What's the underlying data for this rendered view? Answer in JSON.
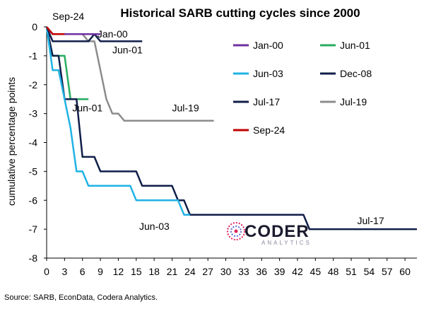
{
  "chart_data": {
    "type": "line",
    "title": "Historical SARB cutting cycles since 2000",
    "ylabel": "cumulative percentage points",
    "xlabel": "",
    "xlim": [
      0,
      62
    ],
    "ylim": [
      -8,
      0
    ],
    "x_ticks": [
      0,
      3,
      6,
      9,
      12,
      15,
      18,
      21,
      24,
      27,
      30,
      33,
      36,
      39,
      42,
      45,
      48,
      51,
      54,
      57,
      60
    ],
    "y_ticks": [
      0,
      -1,
      -2,
      -3,
      -4,
      -5,
      -6,
      -7,
      -8
    ],
    "legend_position": "right",
    "series": [
      {
        "name": "Jan-00",
        "color": "#7030a0",
        "x": [
          0,
          1,
          2,
          3,
          4,
          5,
          6,
          7,
          8,
          9
        ],
        "y": [
          0,
          -0.25,
          -0.25,
          -0.25,
          -0.25,
          -0.25,
          -0.25,
          -0.25,
          -0.25,
          -0.25
        ]
      },
      {
        "name": "Jun-01",
        "color": "#27ae60",
        "x": [
          0,
          1,
          2,
          3,
          4,
          5,
          6,
          7
        ],
        "y": [
          0,
          -1,
          -1,
          -1,
          -2.5,
          -2.5,
          -2.5,
          -2.5
        ]
      },
      {
        "name": "Jun-03",
        "color": "#1fb3e5",
        "x": [
          0,
          1,
          2,
          3,
          4,
          5,
          6,
          7,
          8,
          9,
          10,
          11,
          12,
          13,
          14,
          15,
          16,
          17,
          18,
          19,
          20,
          21,
          22,
          23,
          24
        ],
        "y": [
          0,
          -1.5,
          -1.5,
          -2.5,
          -3.5,
          -5,
          -5,
          -5.5,
          -5.5,
          -5.5,
          -5.5,
          -5.5,
          -5.5,
          -5.5,
          -5.5,
          -6,
          -6,
          -6,
          -6,
          -6,
          -6,
          -6,
          -6,
          -6.5,
          -6.5
        ]
      },
      {
        "name": "Dec-08",
        "color": "#0f1e4a",
        "x": [
          0,
          1,
          2,
          3,
          4,
          5,
          6,
          7,
          8,
          9,
          10,
          11,
          12,
          13,
          14,
          15,
          16,
          17,
          18,
          19,
          20,
          21,
          22,
          23,
          24,
          25,
          26,
          27,
          28,
          29,
          30,
          31,
          32,
          33,
          34,
          35,
          36,
          37,
          38,
          39,
          40,
          41,
          42,
          43,
          44,
          45,
          46,
          47,
          48,
          49,
          50,
          51,
          52,
          53,
          54,
          55,
          56,
          57,
          58,
          59,
          60,
          61,
          62
        ],
        "y": [
          0,
          -1,
          -1,
          -2.5,
          -2.5,
          -2.5,
          -4.5,
          -4.5,
          -4.5,
          -5,
          -5,
          -5,
          -5,
          -5,
          -5,
          -5,
          -5.5,
          -5.5,
          -5.5,
          -5.5,
          -5.5,
          -5.5,
          -6,
          -6,
          -6.5,
          -6.5,
          -6.5,
          -6.5,
          -6.5,
          -6.5,
          -6.5,
          -6.5,
          -6.5,
          -6.5,
          -6.5,
          -6.5,
          -6.5,
          -6.5,
          -6.5,
          -6.5,
          -6.5,
          -6.5,
          -6.5,
          -6.5,
          -7,
          -7,
          -7,
          -7,
          -7,
          -7,
          -7,
          -7,
          -7,
          -7,
          -7,
          -7,
          -7,
          -7,
          -7,
          -7,
          -7,
          -7,
          -7
        ]
      },
      {
        "name": "Jul-17",
        "color": "#0f1e4a",
        "x": [
          0,
          1,
          2,
          3,
          4,
          5,
          6,
          7,
          8,
          9,
          10,
          11,
          12,
          13,
          14,
          15,
          16
        ],
        "y": [
          0,
          -0.5,
          -0.5,
          -0.5,
          -0.5,
          -0.5,
          -0.5,
          -0.5,
          -0.25,
          -0.5,
          -0.5,
          -0.5,
          -0.5,
          -0.5,
          -0.5,
          -0.5,
          -0.5
        ]
      },
      {
        "name": "Jul-19",
        "color": "#8c8c8c",
        "x": [
          0,
          1,
          2,
          3,
          4,
          5,
          6,
          7,
          8,
          9,
          10,
          11,
          12,
          13,
          14,
          15,
          16,
          17,
          18,
          19,
          20,
          21,
          22,
          23,
          24,
          25,
          26,
          27,
          28
        ],
        "y": [
          0,
          -0.25,
          -0.25,
          -0.25,
          -0.25,
          -0.25,
          -0.25,
          -0.5,
          -0.5,
          -1.5,
          -2.5,
          -3,
          -3,
          -3.25,
          -3.25,
          -3.25,
          -3.25,
          -3.25,
          -3.25,
          -3.25,
          -3.25,
          -3.25,
          -3.25,
          -3.25,
          -3.25,
          -3.25,
          -3.25,
          -3.25,
          -3.25
        ]
      },
      {
        "name": "Sep-24",
        "color": "#c00000",
        "x": [
          0,
          1,
          2,
          3
        ],
        "y": [
          0,
          -0.25,
          -0.25,
          -0.25
        ]
      }
    ],
    "annotations": [
      {
        "text": "Sep-24",
        "x": 0,
        "y": 0
      },
      {
        "text": "Jan-00",
        "x": 8.5,
        "y": -0.25
      },
      {
        "text": "Jun-01",
        "x": 11,
        "y": -0.8
      },
      {
        "text": "Jun-01",
        "x": 4.3,
        "y": -2.8
      },
      {
        "text": "Jul-19",
        "x": 21,
        "y": -2.8
      },
      {
        "text": "Jun-03",
        "x": 15.5,
        "y": -6.9
      },
      {
        "text": "Jul-17",
        "x": 52,
        "y": -6.7
      }
    ]
  },
  "source": "Source: SARB, EconData, Codera Analytics.",
  "logo": {
    "word": "CODERA",
    "tagline": "ANALYTICS"
  }
}
